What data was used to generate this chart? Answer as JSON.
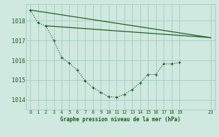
{
  "bg_color": "#cfe8e0",
  "line_color": "#1a5c1a",
  "grid_color": "#a8cfc0",
  "title": "Graphe pression niveau de la mer (hPa)",
  "title_color": "#1a5c1a",
  "xlim": [
    -0.5,
    23.5
  ],
  "ylim": [
    1013.5,
    1018.85
  ],
  "yticks": [
    1014,
    1015,
    1016,
    1017,
    1018
  ],
  "xticks": [
    0,
    1,
    2,
    3,
    4,
    5,
    6,
    7,
    8,
    9,
    10,
    11,
    12,
    13,
    14,
    15,
    16,
    17,
    18,
    19,
    23
  ],
  "line1_x": [
    0,
    1,
    2,
    3,
    4,
    5,
    6,
    7,
    8,
    9,
    10,
    11,
    12,
    13,
    14,
    15,
    16,
    17,
    18,
    19
  ],
  "line1_y": [
    1018.55,
    1017.9,
    1017.75,
    1017.0,
    1016.15,
    1015.85,
    1015.5,
    1014.95,
    1014.62,
    1014.38,
    1014.15,
    1014.12,
    1014.28,
    1014.52,
    1014.85,
    1015.28,
    1015.28,
    1015.82,
    1015.82,
    1015.88
  ],
  "line2_x": [
    2,
    23
  ],
  "line2_y": [
    1017.75,
    1017.15
  ],
  "line3_x": [
    0,
    23
  ],
  "line3_y": [
    1018.55,
    1017.15
  ]
}
